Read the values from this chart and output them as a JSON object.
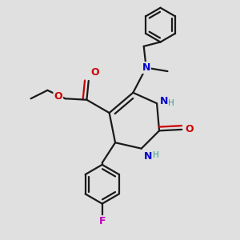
{
  "bg_color": "#e0e0e0",
  "bond_color": "#1a1a1a",
  "bond_width": 1.6,
  "atom_colors": {
    "N": "#0000cc",
    "O": "#cc0000",
    "F": "#bb00bb",
    "H_color": "#2aa090",
    "C": "#1a1a1a"
  },
  "font_size": 9,
  "font_size_small": 7.5
}
